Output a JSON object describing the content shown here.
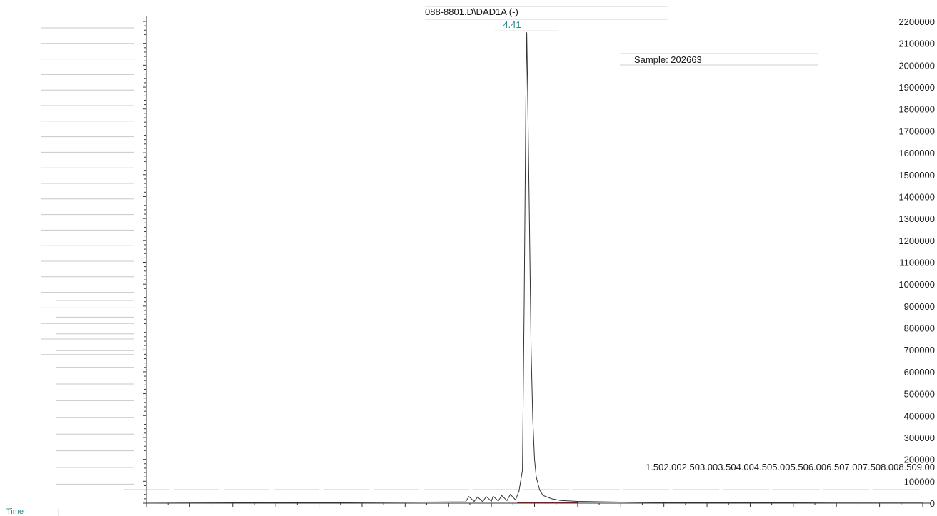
{
  "colors": {
    "trace": "#333333",
    "baseline": "#8b1a1a",
    "peak_label": "#1f8a8a",
    "axis": "#333333",
    "faint_line": "#c8c8c8"
  },
  "chart_data": {
    "type": "line",
    "title": "088-8801.D\\DAD1A (-)",
    "annotation": "Sample: 202663",
    "xlabel": "Time",
    "ylabel": "",
    "xlim": [
      0,
      9.0
    ],
    "ylim": [
      0,
      2200000
    ],
    "y_tick_labels": [
      "0",
      "100000",
      "200000",
      "300000",
      "400000",
      "500000",
      "600000",
      "700000",
      "800000",
      "900000",
      "1000000",
      "1100000",
      "1200000",
      "1300000",
      "1400000",
      "1500000",
      "1600000",
      "1700000",
      "1800000",
      "1900000",
      "2000000",
      "2100000",
      "2200000"
    ],
    "x_tick_labels": [
      "1.50",
      "2.00",
      "2.50",
      "3.00",
      "3.50",
      "4.00",
      "4.50",
      "5.00",
      "5.50",
      "6.00",
      "6.50",
      "7.00",
      "7.50",
      "8.00",
      "8.50",
      "9.00"
    ],
    "peaks": [
      {
        "label": "4.41",
        "rt": 4.41,
        "height": 2150000
      }
    ],
    "series": [
      {
        "x": [
          0.0,
          1.0,
          2.0,
          2.5,
          3.0,
          3.2,
          3.7,
          3.74,
          3.8,
          3.84,
          3.9,
          3.94,
          4.0,
          4.02,
          4.08,
          4.12,
          4.18,
          4.22,
          4.28,
          4.32,
          4.36,
          4.38,
          4.4,
          4.41,
          4.42,
          4.44,
          4.46,
          4.48,
          4.5,
          4.52,
          4.56,
          4.6,
          4.7,
          4.8,
          5.0,
          5.5,
          6.0,
          6.5,
          7.0,
          7.5,
          8.0,
          8.5,
          9.0
        ],
        "y": [
          0,
          1500,
          2500,
          3500,
          4500,
          5000,
          6000,
          30000,
          8000,
          28000,
          7000,
          30000,
          9000,
          32000,
          10000,
          35000,
          12000,
          40000,
          15000,
          55000,
          150000,
          900000,
          1850000,
          2150000,
          1900000,
          1300000,
          700000,
          380000,
          200000,
          120000,
          60000,
          35000,
          20000,
          12000,
          8000,
          5000,
          3000,
          2500,
          2000,
          1500,
          1000,
          800,
          600
        ]
      }
    ]
  }
}
